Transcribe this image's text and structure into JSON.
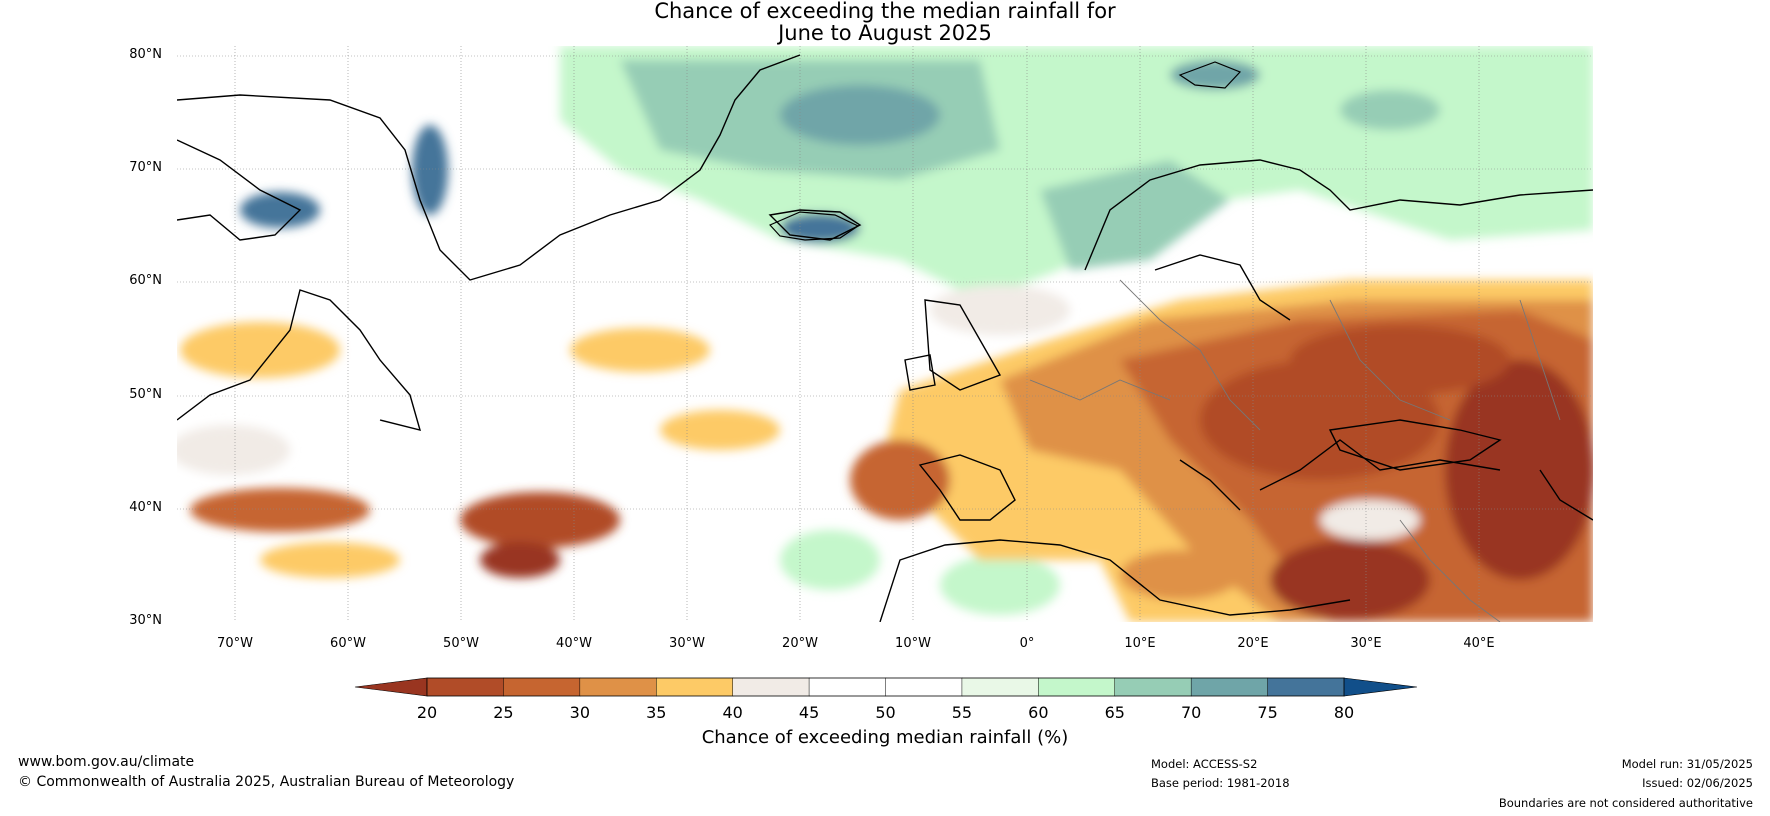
{
  "title_line1": "Chance of exceeding the median rainfall for",
  "title_line2": "June to August 2025",
  "map": {
    "lat_labels": [
      "80°N",
      "70°N",
      "60°N",
      "50°N",
      "40°N",
      "30°N"
    ],
    "lon_labels": [
      "70°W",
      "60°W",
      "50°W",
      "40°W",
      "30°W",
      "20°W",
      "10°W",
      "0°",
      "10°E",
      "20°E",
      "30°E",
      "40°E"
    ],
    "extent": {
      "lon_min": -75,
      "lon_max": 50,
      "lat_min": 30,
      "lat_max": 81
    }
  },
  "colorbar": {
    "ticks": [
      "20",
      "25",
      "30",
      "35",
      "40",
      "45",
      "50",
      "55",
      "60",
      "65",
      "70",
      "75",
      "80"
    ],
    "colors": [
      "#993520",
      "#b14c28",
      "#c66530",
      "#df9147",
      "#fdca66",
      "#f1ebe6",
      "#ffffff",
      "#ffffff",
      "#e9f8e7",
      "#c4f7cb",
      "#96cdb5",
      "#6fa5a8",
      "#44749a",
      "#114f8a"
    ],
    "label": "Chance of exceeding median rainfall (%)"
  },
  "footer": {
    "url": "www.bom.gov.au/climate",
    "copyright": "© Commonwealth of Australia 2025, Australian Bureau of Meteorology",
    "model": "Model: ACCESS-S2",
    "base_period": "Base period: 1981-2018",
    "model_run": "Model run: 31/05/2025",
    "issued": "Issued: 02/06/2025",
    "disclaimer": "Boundaries are not considered authoritative"
  }
}
